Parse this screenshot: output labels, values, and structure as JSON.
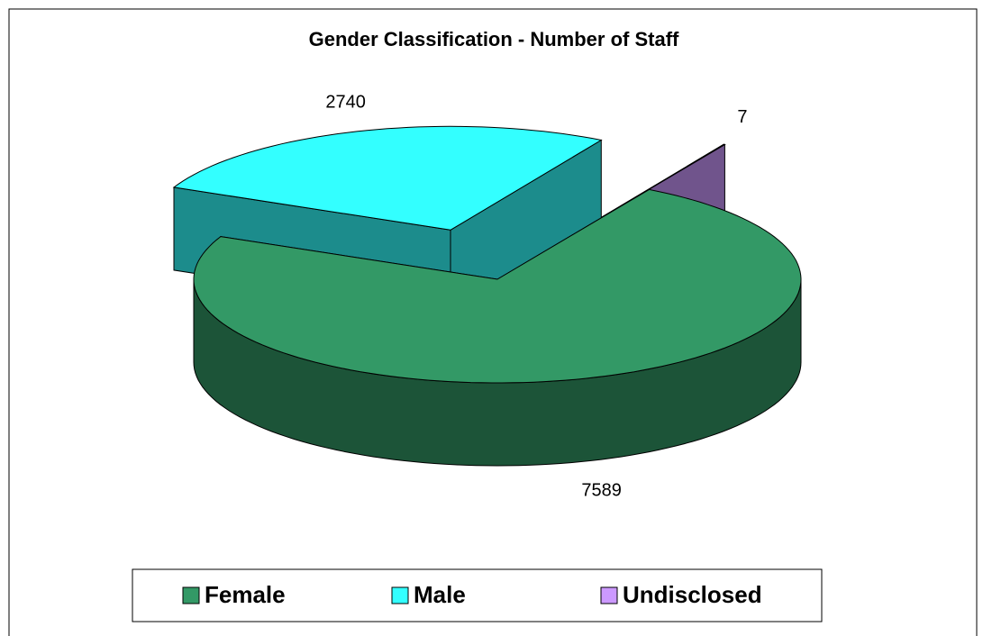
{
  "chart_data": {
    "type": "pie3d",
    "title": "Gender Classification - Number of Staff",
    "categories": [
      "Female",
      "Male",
      "Undisclosed"
    ],
    "values": [
      7589,
      2740,
      7
    ],
    "colors": [
      "#339966",
      "#33ffff",
      "#cc99ff"
    ]
  }
}
